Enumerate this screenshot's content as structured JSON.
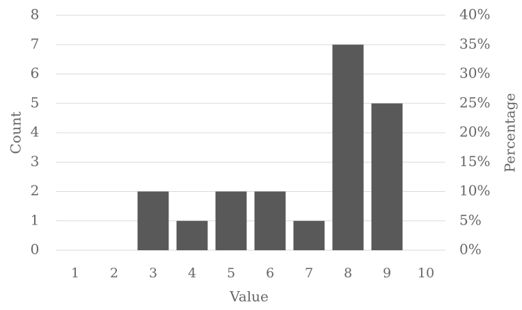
{
  "chart_data": {
    "type": "bar",
    "x_label": "Value",
    "y_label": "Count",
    "y2_label": "Percentage",
    "categories": [
      "1",
      "2",
      "3",
      "4",
      "5",
      "6",
      "7",
      "8",
      "9",
      "10"
    ],
    "values": [
      0,
      0,
      2,
      1,
      2,
      2,
      1,
      7,
      5,
      0
    ],
    "color": "#595959",
    "ylim": [
      0,
      8
    ],
    "yticks": [
      0,
      1,
      2,
      3,
      4,
      5,
      6,
      7,
      8
    ],
    "y2lim": [
      0,
      40
    ],
    "y2ticks": [
      {
        "value": 0,
        "label": "0%"
      },
      {
        "value": 5,
        "label": "5%"
      },
      {
        "value": 10,
        "label": "10%"
      },
      {
        "value": 15,
        "label": "15%"
      },
      {
        "value": 20,
        "label": "20%"
      },
      {
        "value": 25,
        "label": "25%"
      },
      {
        "value": 30,
        "label": "30%"
      },
      {
        "value": 35,
        "label": "35%"
      },
      {
        "value": 40,
        "label": "40%"
      }
    ],
    "grid": true
  }
}
